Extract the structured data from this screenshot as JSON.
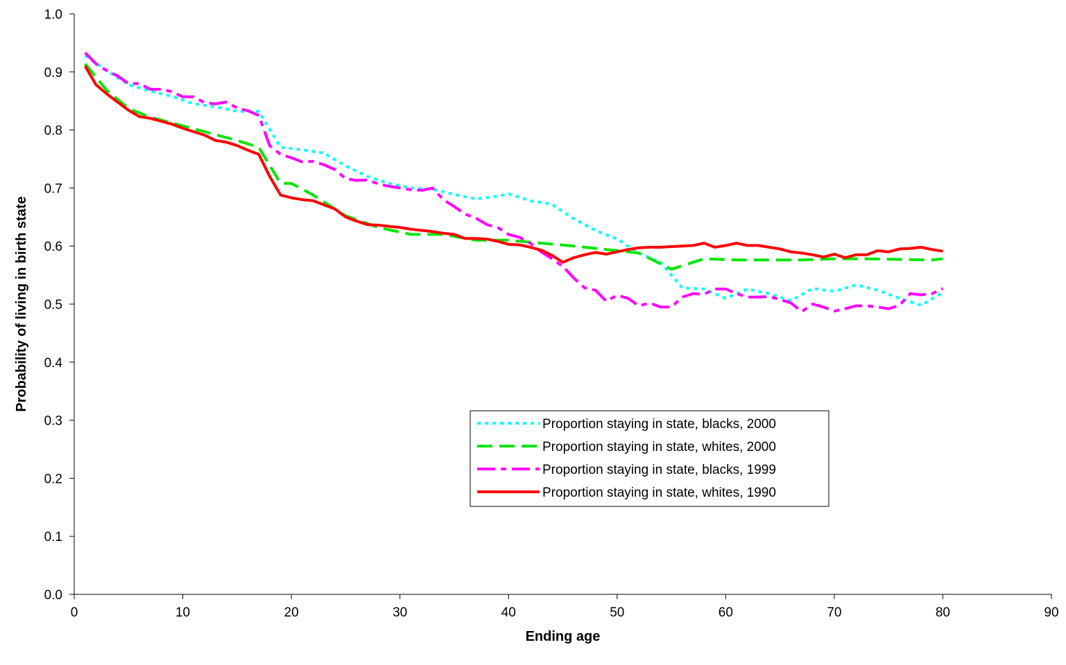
{
  "chart_data": {
    "type": "line",
    "title": "",
    "xlabel": "Ending age",
    "ylabel": "Probability of living in birth state",
    "xlim": [
      0,
      90
    ],
    "ylim": [
      0.0,
      1.0
    ],
    "x_ticks": [
      0,
      10,
      20,
      30,
      40,
      50,
      60,
      70,
      80,
      90
    ],
    "x_tick_labels": [
      "0",
      "10",
      "20",
      "30",
      "40",
      "50",
      "60",
      "70",
      "80",
      "90"
    ],
    "y_ticks": [
      0.0,
      0.1,
      0.2,
      0.3,
      0.4,
      0.5,
      0.6,
      0.7,
      0.8,
      0.9,
      1.0
    ],
    "y_tick_labels": [
      "0.0",
      "0.1",
      "0.2",
      "0.3",
      "0.4",
      "0.5",
      "0.6",
      "0.7",
      "0.8",
      "0.9",
      "1.0"
    ],
    "grid": false,
    "legend_position": "center-right",
    "series": [
      {
        "name": "Proportion staying in state, blacks, 2000",
        "color": "#00FFFF",
        "dash": "dotted",
        "x": [
          1,
          3,
          5,
          7,
          9,
          11,
          13,
          15,
          17,
          19,
          21,
          23,
          25,
          27,
          29,
          31,
          33,
          35,
          37,
          39,
          40,
          42,
          44,
          46,
          48,
          50,
          52,
          54,
          56,
          58,
          60,
          62,
          64,
          66,
          68,
          70,
          72,
          74,
          76,
          78,
          80
        ],
        "y": [
          0.928,
          0.902,
          0.878,
          0.867,
          0.858,
          0.845,
          0.84,
          0.832,
          0.832,
          0.77,
          0.766,
          0.76,
          0.738,
          0.72,
          0.708,
          0.7,
          0.698,
          0.689,
          0.681,
          0.686,
          0.69,
          0.678,
          0.672,
          0.647,
          0.627,
          0.612,
          0.588,
          0.572,
          0.528,
          0.526,
          0.51,
          0.526,
          0.518,
          0.506,
          0.527,
          0.522,
          0.533,
          0.524,
          0.51,
          0.498,
          0.52
        ]
      },
      {
        "name": "Proportion staying in state, whites, 2000",
        "color": "#00E600",
        "dash": "dashed",
        "x": [
          1,
          3,
          5,
          7,
          9,
          11,
          13,
          15,
          17,
          19,
          20,
          22,
          25,
          28,
          31,
          34,
          37,
          40,
          43,
          46,
          49,
          52,
          55,
          58,
          61,
          64,
          67,
          70,
          73,
          76,
          79,
          80
        ],
        "y": [
          0.914,
          0.868,
          0.837,
          0.822,
          0.812,
          0.802,
          0.792,
          0.782,
          0.77,
          0.708,
          0.708,
          0.688,
          0.652,
          0.632,
          0.62,
          0.62,
          0.61,
          0.61,
          0.605,
          0.6,
          0.594,
          0.588,
          0.56,
          0.578,
          0.576,
          0.576,
          0.576,
          0.578,
          0.578,
          0.577,
          0.576,
          0.578
        ]
      },
      {
        "name": "Proportion staying in state, blacks, 1999",
        "color": "#FF00FF",
        "dash": "long-short",
        "x": [
          1,
          2,
          3,
          4,
          5,
          6,
          7,
          8,
          9,
          10,
          11,
          12,
          13,
          14,
          15,
          16,
          17,
          18,
          19,
          20,
          21,
          22,
          23,
          24,
          25,
          26,
          27,
          28,
          29,
          30,
          31,
          32,
          33,
          34,
          35,
          36,
          37,
          38,
          39,
          40,
          41,
          42,
          43,
          44,
          45,
          46,
          47,
          48,
          49,
          50,
          51,
          52,
          53,
          54,
          55,
          56,
          57,
          58,
          59,
          60,
          61,
          62,
          63,
          64,
          65,
          66,
          67,
          68,
          69,
          70,
          71,
          72,
          73,
          74,
          75,
          76,
          77,
          78,
          79,
          80
        ],
        "y": [
          0.933,
          0.914,
          0.902,
          0.893,
          0.88,
          0.88,
          0.87,
          0.87,
          0.866,
          0.857,
          0.857,
          0.847,
          0.845,
          0.848,
          0.838,
          0.833,
          0.825,
          0.773,
          0.758,
          0.752,
          0.745,
          0.746,
          0.74,
          0.732,
          0.716,
          0.713,
          0.714,
          0.707,
          0.703,
          0.7,
          0.697,
          0.696,
          0.7,
          0.68,
          0.668,
          0.655,
          0.648,
          0.637,
          0.632,
          0.62,
          0.615,
          0.605,
          0.59,
          0.578,
          0.565,
          0.545,
          0.528,
          0.524,
          0.505,
          0.515,
          0.51,
          0.497,
          0.502,
          0.495,
          0.495,
          0.512,
          0.518,
          0.517,
          0.526,
          0.526,
          0.518,
          0.512,
          0.512,
          0.513,
          0.508,
          0.502,
          0.487,
          0.5,
          0.495,
          0.488,
          0.492,
          0.497,
          0.497,
          0.495,
          0.492,
          0.498,
          0.518,
          0.516,
          0.518,
          0.527
        ]
      },
      {
        "name": "Proportion staying in state, whites, 1990",
        "color": "#FF0000",
        "dash": "solid",
        "x": [
          1,
          2,
          3,
          4,
          5,
          6,
          7,
          8,
          9,
          10,
          11,
          12,
          13,
          14,
          15,
          16,
          17,
          18,
          19,
          20,
          21,
          22,
          23,
          24,
          25,
          26,
          27,
          28,
          29,
          30,
          31,
          32,
          33,
          34,
          35,
          36,
          37,
          38,
          39,
          40,
          41,
          42,
          43,
          44,
          45,
          46,
          47,
          48,
          49,
          50,
          51,
          52,
          53,
          54,
          55,
          56,
          57,
          58,
          59,
          60,
          61,
          62,
          63,
          64,
          65,
          66,
          67,
          68,
          69,
          70,
          71,
          72,
          73,
          74,
          75,
          76,
          77,
          78,
          79,
          80
        ],
        "y": [
          0.91,
          0.878,
          0.862,
          0.848,
          0.834,
          0.823,
          0.82,
          0.815,
          0.81,
          0.803,
          0.797,
          0.791,
          0.782,
          0.779,
          0.773,
          0.765,
          0.758,
          0.72,
          0.688,
          0.683,
          0.68,
          0.678,
          0.671,
          0.664,
          0.65,
          0.643,
          0.637,
          0.636,
          0.634,
          0.632,
          0.629,
          0.627,
          0.625,
          0.622,
          0.62,
          0.613,
          0.613,
          0.612,
          0.608,
          0.603,
          0.602,
          0.598,
          0.593,
          0.584,
          0.572,
          0.58,
          0.585,
          0.589,
          0.586,
          0.59,
          0.594,
          0.597,
          0.598,
          0.598,
          0.599,
          0.6,
          0.601,
          0.605,
          0.598,
          0.601,
          0.605,
          0.601,
          0.601,
          0.598,
          0.595,
          0.59,
          0.588,
          0.585,
          0.581,
          0.586,
          0.58,
          0.585,
          0.585,
          0.592,
          0.59,
          0.595,
          0.596,
          0.598,
          0.594,
          0.591
        ]
      }
    ]
  }
}
